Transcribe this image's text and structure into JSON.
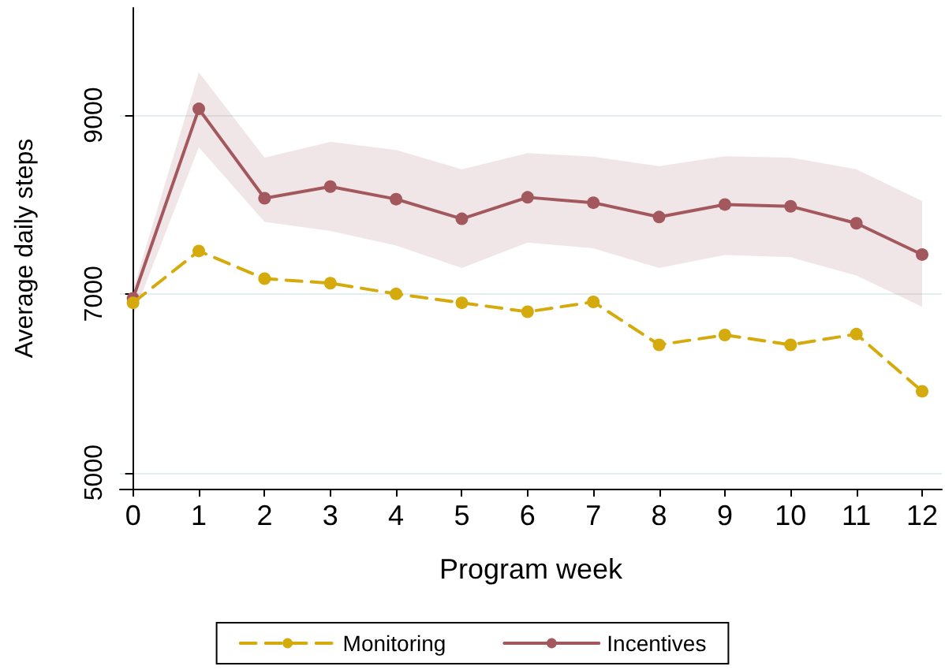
{
  "chart_data": {
    "type": "line",
    "xlabel": "Program week",
    "ylabel": "Average daily steps",
    "x": [
      0,
      1,
      2,
      3,
      4,
      5,
      6,
      7,
      8,
      9,
      10,
      11,
      12
    ],
    "xlim": [
      -0.2,
      12.3
    ],
    "xticks": [
      0,
      1,
      2,
      3,
      4,
      5,
      6,
      7,
      8,
      9,
      10,
      11,
      12
    ],
    "ylim": [
      4820,
      10200
    ],
    "yticks": [
      5000,
      7000,
      9000
    ],
    "grid": "y",
    "legend": "bottom",
    "marker": "circle",
    "series": [
      {
        "name": "Monitoring",
        "color": "#d4aa0c",
        "line_style": "dashed",
        "values": [
          6900,
          7480,
          7170,
          7120,
          7000,
          6900,
          6800,
          6910,
          6430,
          6540,
          6430,
          6550,
          5910
        ]
      },
      {
        "name": "Incentives",
        "color": "#a3585e",
        "line_style": "solid",
        "values": [
          6950,
          9070,
          8070,
          8200,
          8060,
          7840,
          8080,
          8020,
          7860,
          8000,
          7980,
          7790,
          7440
        ],
        "lower": [
          6750,
          8640,
          7805,
          7705,
          7540,
          7290,
          7575,
          7510,
          7290,
          7435,
          7410,
          7205,
          6855
        ],
        "upper": [
          7050,
          9480,
          8525,
          8700,
          8610,
          8395,
          8575,
          8535,
          8430,
          8540,
          8525,
          8395,
          8040
        ]
      }
    ]
  }
}
